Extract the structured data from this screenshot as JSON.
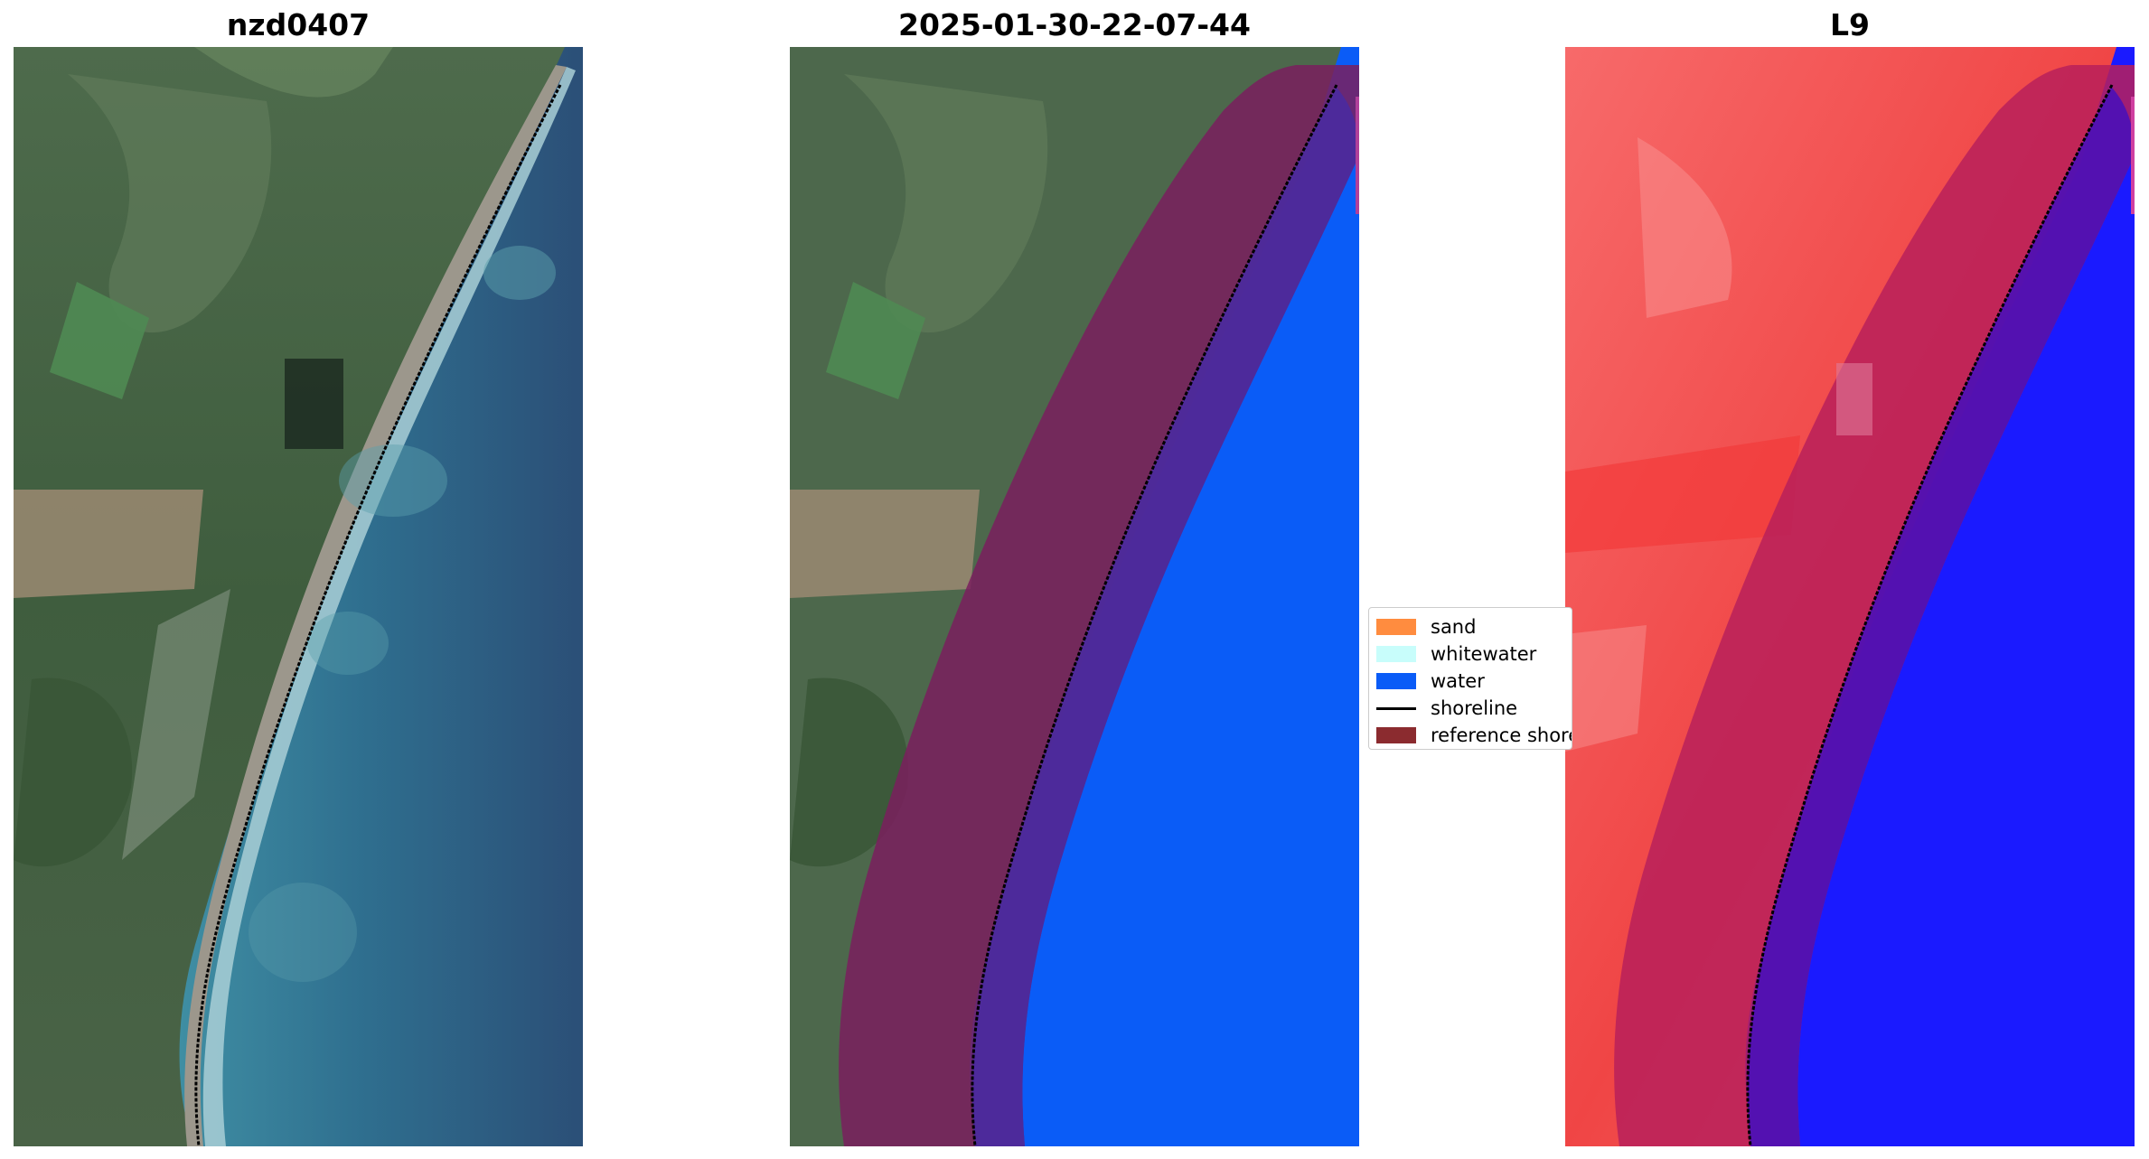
{
  "panels": {
    "rgb": {
      "title": "nzd0407"
    },
    "classified": {
      "title": "2025-01-30-22-07-44"
    },
    "index": {
      "title": "L9"
    }
  },
  "legend": {
    "items": [
      {
        "label": "sand",
        "color": "#ff8c3f",
        "kind": "patch"
      },
      {
        "label": "whitewater",
        "color": "#c8fdfb",
        "kind": "patch"
      },
      {
        "label": "water",
        "color": "#0a5cf7",
        "kind": "patch"
      },
      {
        "label": "shoreline",
        "color": "#000000",
        "kind": "line"
      },
      {
        "label": "reference shoreline buffer",
        "color": "#8b2b2f",
        "kind": "patch"
      }
    ]
  },
  "colors": {
    "reference_buffer_overlay": "#7a1e5e",
    "water_class": "#0a5cf7",
    "index_land": "#f25a5a",
    "index_water": "#1a1aff"
  }
}
